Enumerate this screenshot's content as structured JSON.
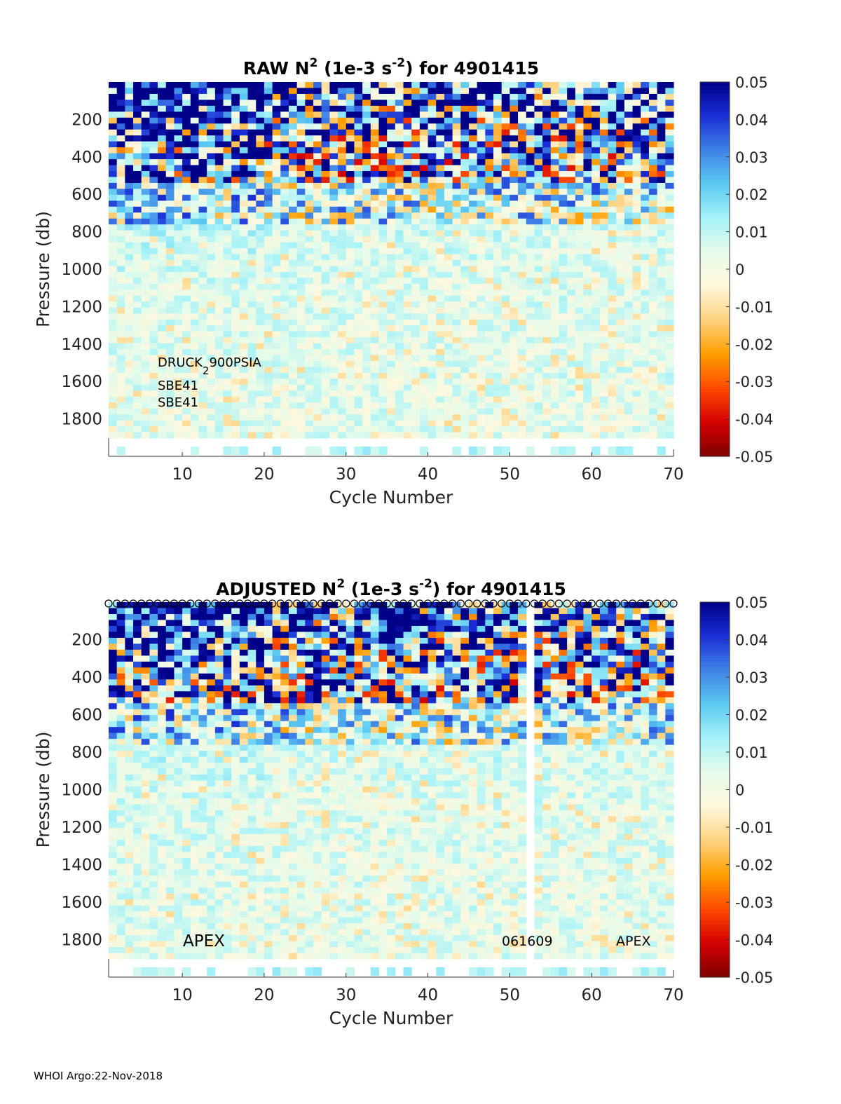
{
  "footer_text": "WHOI Argo:22-Nov-2018",
  "colors": {
    "scale": [
      "#7f0000",
      "#d40000",
      "#ff4a00",
      "#ff9e00",
      "#ffd27f",
      "#fff7dc",
      "#e6fbe9",
      "#a6f2f8",
      "#5ccaf2",
      "#3f82e6",
      "#1a2fd6",
      "#000088"
    ]
  },
  "chart_data": [
    {
      "type": "heatmap",
      "title_pre": "RAW N",
      "title_sup1": "2",
      "title_mid": " (1e-3 s",
      "title_sup2": "-2",
      "title_post": ") for 4901415",
      "xlabel": "Cycle Number",
      "ylabel": "Pressure (db)",
      "xlim": [
        1,
        70
      ],
      "ylim": [
        2000,
        0
      ],
      "xticks": [
        "10",
        "20",
        "30",
        "40",
        "50",
        "60",
        "70"
      ],
      "yticks": [
        "200",
        "400",
        "600",
        "800",
        "1000",
        "1200",
        "1400",
        "1600",
        "1800"
      ],
      "colorbar": {
        "range": [
          -0.05,
          0.05
        ],
        "ticks": [
          "0.05",
          "0.04",
          "0.03",
          "0.02",
          "0.01",
          "0",
          "-0.01",
          "-0.02",
          "-0.03",
          "-0.04",
          "-0.05"
        ]
      },
      "annotations": [
        "DRUCK",
        "2",
        "900PSIA",
        "SBE41",
        "SBE41"
      ],
      "gap_cycles": [],
      "top_markers": false
    },
    {
      "type": "heatmap",
      "title_pre": "ADJUSTED N",
      "title_sup1": "2",
      "title_mid": " (1e-3 s",
      "title_sup2": "-2",
      "title_post": ") for 4901415",
      "xlabel": "Cycle Number",
      "ylabel": "Pressure (db)",
      "xlim": [
        1,
        70
      ],
      "ylim": [
        2000,
        0
      ],
      "xticks": [
        "10",
        "20",
        "30",
        "40",
        "50",
        "60",
        "70"
      ],
      "yticks": [
        "200",
        "400",
        "600",
        "800",
        "1000",
        "1200",
        "1400",
        "1600",
        "1800"
      ],
      "colorbar": {
        "range": [
          -0.05,
          0.05
        ],
        "ticks": [
          "0.05",
          "0.04",
          "0.03",
          "0.02",
          "0.01",
          "0",
          "-0.01",
          "-0.02",
          "-0.03",
          "-0.04",
          "-0.05"
        ]
      },
      "annotations": [
        "APEX",
        "061609",
        "APEX"
      ],
      "gap_cycles": [
        52
      ],
      "top_markers": true
    }
  ]
}
